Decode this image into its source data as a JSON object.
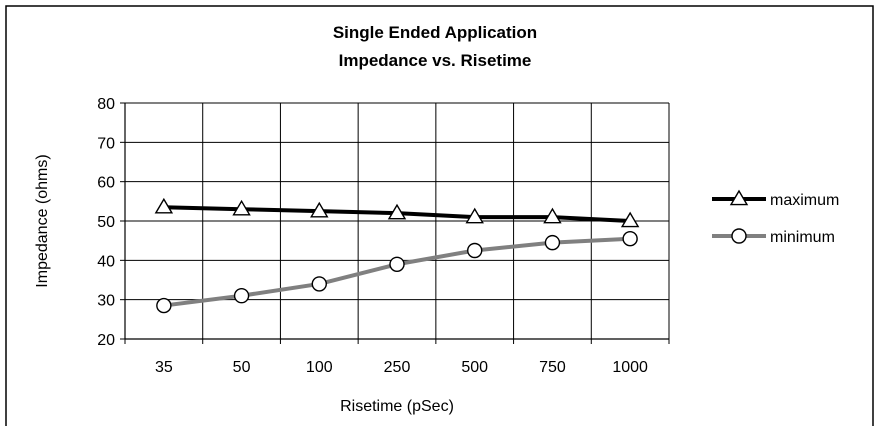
{
  "chart_data": {
    "type": "line",
    "title": "Single Ended Application",
    "subtitle": "Impedance vs. Risetime",
    "xlabel": "Risetime (pSec)",
    "ylabel": "Impedance (ohms)",
    "categories": [
      "35",
      "50",
      "100",
      "250",
      "500",
      "750",
      "1000"
    ],
    "ylim": [
      20,
      80
    ],
    "yticks": [
      "20",
      "30",
      "40",
      "50",
      "60",
      "70",
      "80"
    ],
    "grid": true,
    "legend_position": "right",
    "series": [
      {
        "name": "maximum",
        "values": [
          53.5,
          53,
          52.5,
          52,
          51,
          51,
          50
        ],
        "color": "#000000",
        "marker": "triangle"
      },
      {
        "name": "minimum",
        "values": [
          28.5,
          31,
          34,
          39,
          42.5,
          44.5,
          45.5
        ],
        "color": "#808080",
        "marker": "circle"
      }
    ]
  }
}
